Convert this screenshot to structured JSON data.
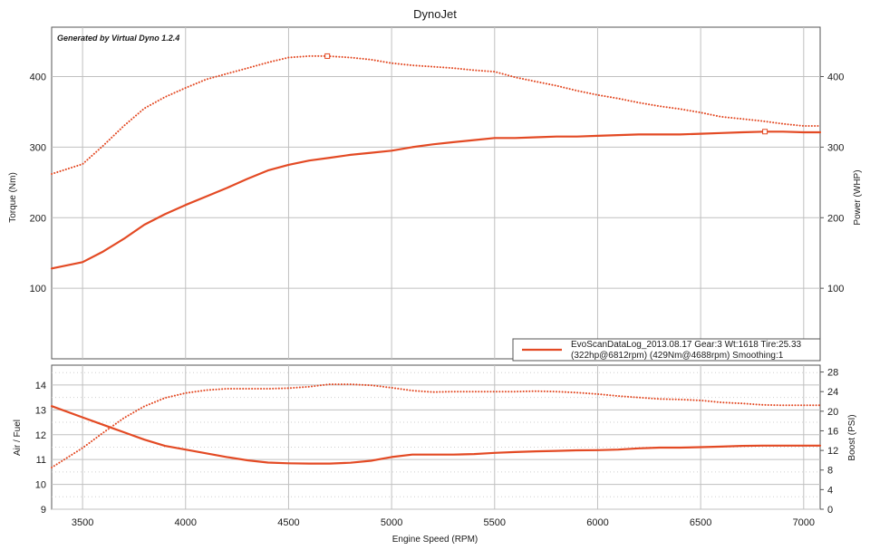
{
  "title": "DynoJet",
  "watermark": "Generated by Virtual Dyno 1.2.4",
  "xlabel": "Engine Speed (RPM)",
  "legend": {
    "line1": "EvoScanDataLog_2013.08.17 Gear:3 Wt:1618 Tire:25.33",
    "line2": "(322hp@6812rpm) (429Nm@4688rpm) Smoothing:1",
    "color": "#e34a24",
    "placement": "bottom-right of top panel"
  },
  "colors": {
    "series": "#e34a24",
    "grid": "#c0c0c0",
    "background": "#ffffff"
  },
  "chart_data": [
    {
      "type": "line",
      "panel": "top",
      "xlim": [
        3350,
        7080
      ],
      "x_ticks": [
        "3500",
        "4000",
        "4500",
        "5000",
        "5500",
        "6000",
        "6500",
        "7000"
      ],
      "y_left": {
        "label": "Torque (Nm)",
        "lim": [
          0,
          470
        ],
        "ticks": [
          "100",
          "200",
          "300",
          "400"
        ]
      },
      "y_right": {
        "label": "Power (WHP)",
        "lim": [
          0,
          470
        ],
        "ticks": [
          "100",
          "200",
          "300",
          "400"
        ]
      },
      "grid": true,
      "series": [
        {
          "style": "dotted",
          "axis": "left",
          "peak_marker": [
            4688,
            429
          ],
          "x": [
            3350,
            3500,
            3600,
            3700,
            3800,
            3900,
            4000,
            4100,
            4200,
            4300,
            4400,
            4500,
            4600,
            4688,
            4800,
            4900,
            5000,
            5100,
            5200,
            5300,
            5400,
            5500,
            5600,
            5700,
            5800,
            5900,
            6000,
            6100,
            6200,
            6300,
            6400,
            6500,
            6600,
            6700,
            6800,
            6900,
            7000,
            7080
          ],
          "y": [
            262,
            276,
            302,
            330,
            355,
            371,
            384,
            396,
            404,
            412,
            420,
            427,
            429,
            429,
            427,
            424,
            419,
            416,
            414,
            412,
            409,
            407,
            399,
            393,
            387,
            380,
            374,
            369,
            363,
            358,
            354,
            349,
            343,
            340,
            337,
            333,
            330,
            330
          ]
        },
        {
          "style": "solid",
          "axis": "right",
          "peak_marker": [
            6812,
            322
          ],
          "x": [
            3350,
            3500,
            3600,
            3700,
            3800,
            3900,
            4000,
            4100,
            4200,
            4300,
            4400,
            4500,
            4600,
            4700,
            4800,
            4900,
            5000,
            5100,
            5200,
            5300,
            5400,
            5500,
            5600,
            5700,
            5800,
            5900,
            6000,
            6100,
            6200,
            6300,
            6400,
            6500,
            6600,
            6700,
            6812,
            6900,
            7000,
            7080
          ],
          "y": [
            128,
            137,
            152,
            170,
            190,
            205,
            218,
            230,
            242,
            255,
            267,
            275,
            281,
            285,
            289,
            292,
            295,
            300,
            304,
            307,
            310,
            313,
            313,
            314,
            315,
            315,
            316,
            317,
            318,
            318,
            318,
            319,
            320,
            321,
            322,
            322,
            321,
            321
          ]
        }
      ]
    },
    {
      "type": "line",
      "panel": "bottom",
      "xlim": [
        3350,
        7080
      ],
      "y_left": {
        "label": "Air / Fuel",
        "lim": [
          9,
          14.8
        ],
        "ticks": [
          "9",
          "10",
          "11",
          "12",
          "13",
          "14"
        ]
      },
      "y_right": {
        "label": "Boost (PSI)",
        "lim": [
          0,
          29.4
        ],
        "ticks": [
          "0",
          "4",
          "8",
          "12",
          "16",
          "20",
          "24",
          "28"
        ]
      },
      "grid": true,
      "series": [
        {
          "style": "solid",
          "axis": "left",
          "x": [
            3350,
            3500,
            3600,
            3700,
            3800,
            3900,
            4000,
            4100,
            4200,
            4300,
            4400,
            4500,
            4600,
            4700,
            4800,
            4900,
            5000,
            5100,
            5200,
            5300,
            5400,
            5500,
            5600,
            5700,
            5800,
            5900,
            6000,
            6100,
            6200,
            6300,
            6400,
            6500,
            6600,
            6700,
            6800,
            6900,
            7000,
            7080
          ],
          "y": [
            13.15,
            12.7,
            12.4,
            12.1,
            11.8,
            11.55,
            11.4,
            11.25,
            11.1,
            10.97,
            10.88,
            10.85,
            10.84,
            10.84,
            10.87,
            10.95,
            11.1,
            11.2,
            11.2,
            11.2,
            11.22,
            11.27,
            11.3,
            11.33,
            11.35,
            11.37,
            11.38,
            11.4,
            11.45,
            11.48,
            11.48,
            11.5,
            11.52,
            11.55,
            11.56,
            11.56,
            11.56,
            11.56
          ]
        },
        {
          "style": "dotted",
          "axis": "right",
          "x": [
            3350,
            3500,
            3600,
            3700,
            3800,
            3900,
            4000,
            4100,
            4200,
            4300,
            4400,
            4500,
            4600,
            4700,
            4800,
            4900,
            5000,
            5100,
            5200,
            5300,
            5400,
            5500,
            5600,
            5700,
            5800,
            5900,
            6000,
            6100,
            6200,
            6300,
            6400,
            6500,
            6600,
            6700,
            6800,
            6900,
            7000,
            7080
          ],
          "y": [
            8.5,
            12.5,
            15.6,
            18.6,
            21.0,
            22.7,
            23.7,
            24.3,
            24.6,
            24.6,
            24.6,
            24.7,
            25.0,
            25.5,
            25.5,
            25.3,
            24.8,
            24.2,
            23.9,
            24.0,
            24.0,
            24.0,
            24.0,
            24.1,
            24.0,
            23.8,
            23.5,
            23.1,
            22.8,
            22.5,
            22.4,
            22.2,
            21.8,
            21.6,
            21.3,
            21.2,
            21.2,
            21.2
          ]
        }
      ]
    }
  ]
}
